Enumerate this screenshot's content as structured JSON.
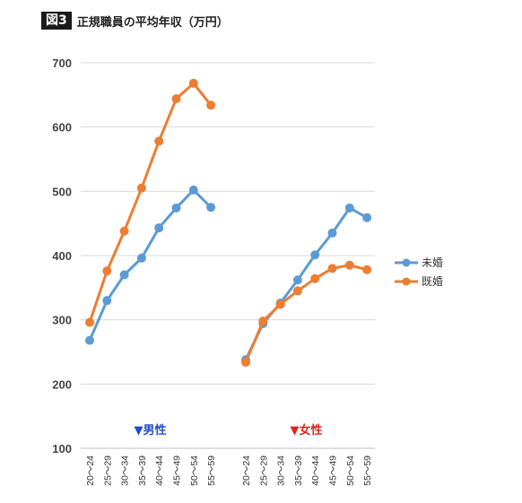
{
  "figure": {
    "badge": "図3",
    "title": "正規職員の平均年収（万円）"
  },
  "chart_data": {
    "type": "line",
    "title": "正規職員の平均年収（万円）",
    "xlabel": "",
    "ylabel": "",
    "ylim": [
      100,
      700
    ],
    "yticks": [
      100,
      200,
      300,
      400,
      500,
      600,
      700
    ],
    "grid": true,
    "legend_position": "right",
    "groups": [
      {
        "label": "▼男性",
        "label_color": "#1f4fc4",
        "categories": [
          "20～24",
          "25～29",
          "30～34",
          "35～39",
          "40～44",
          "45～49",
          "50～54",
          "55～59"
        ],
        "series": [
          {
            "name": "未婚",
            "values": [
              268,
              330,
              370,
              396,
              443,
              474,
              502,
              475
            ]
          },
          {
            "name": "既婚",
            "values": [
              296,
              376,
              438,
              505,
              578,
              644,
              668,
              634
            ]
          }
        ]
      },
      {
        "label": "▼女性",
        "label_color": "#d9261c",
        "categories": [
          "20～24",
          "25～29",
          "30～34",
          "35～39",
          "40～44",
          "45～49",
          "50～54",
          "55～59"
        ],
        "series": [
          {
            "name": "未婚",
            "values": [
              238,
              294,
              326,
              362,
              401,
              435,
              474,
              459
            ]
          },
          {
            "name": "既婚",
            "values": [
              234,
              298,
              324,
              345,
              364,
              380,
              385,
              378
            ]
          }
        ]
      }
    ],
    "legend": [
      {
        "name": "未婚",
        "color": "#5b9bd5"
      },
      {
        "name": "既婚",
        "color": "#ed7d31"
      }
    ]
  }
}
